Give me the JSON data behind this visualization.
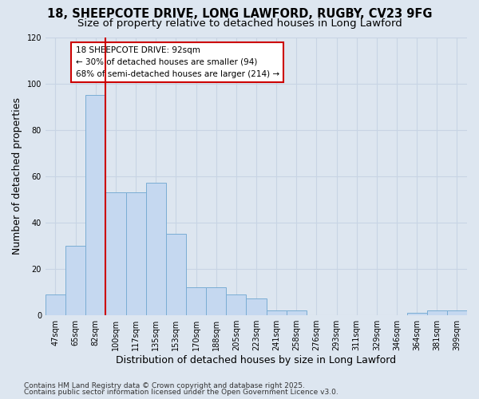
{
  "title1": "18, SHEEPCOTE DRIVE, LONG LAWFORD, RUGBY, CV23 9FG",
  "title2": "Size of property relative to detached houses in Long Lawford",
  "xlabel": "Distribution of detached houses by size in Long Lawford",
  "ylabel": "Number of detached properties",
  "categories": [
    "47sqm",
    "65sqm",
    "82sqm",
    "100sqm",
    "117sqm",
    "135sqm",
    "153sqm",
    "170sqm",
    "188sqm",
    "205sqm",
    "223sqm",
    "241sqm",
    "258sqm",
    "276sqm",
    "293sqm",
    "311sqm",
    "329sqm",
    "346sqm",
    "364sqm",
    "381sqm",
    "399sqm"
  ],
  "values": [
    9,
    30,
    95,
    53,
    53,
    57,
    35,
    12,
    12,
    9,
    7,
    2,
    2,
    0,
    0,
    0,
    0,
    0,
    1,
    2,
    2
  ],
  "bar_color": "#c5d8f0",
  "bar_edge_color": "#7aadd4",
  "red_line_x": 2.5,
  "annotation_text": "18 SHEEPCOTE DRIVE: 92sqm\n← 30% of detached houses are smaller (94)\n68% of semi-detached houses are larger (214) →",
  "annotation_box_facecolor": "#ffffff",
  "annotation_box_edgecolor": "#cc0000",
  "red_line_color": "#cc0000",
  "grid_color": "#c8d4e4",
  "background_color": "#dde6f0",
  "ylim": [
    0,
    120
  ],
  "yticks": [
    0,
    20,
    40,
    60,
    80,
    100,
    120
  ],
  "footer1": "Contains HM Land Registry data © Crown copyright and database right 2025.",
  "footer2": "Contains public sector information licensed under the Open Government Licence v3.0.",
  "title_fontsize": 10.5,
  "subtitle_fontsize": 9.5,
  "tick_fontsize": 7,
  "label_fontsize": 9,
  "annotation_fontsize": 7.5,
  "footer_fontsize": 6.5
}
